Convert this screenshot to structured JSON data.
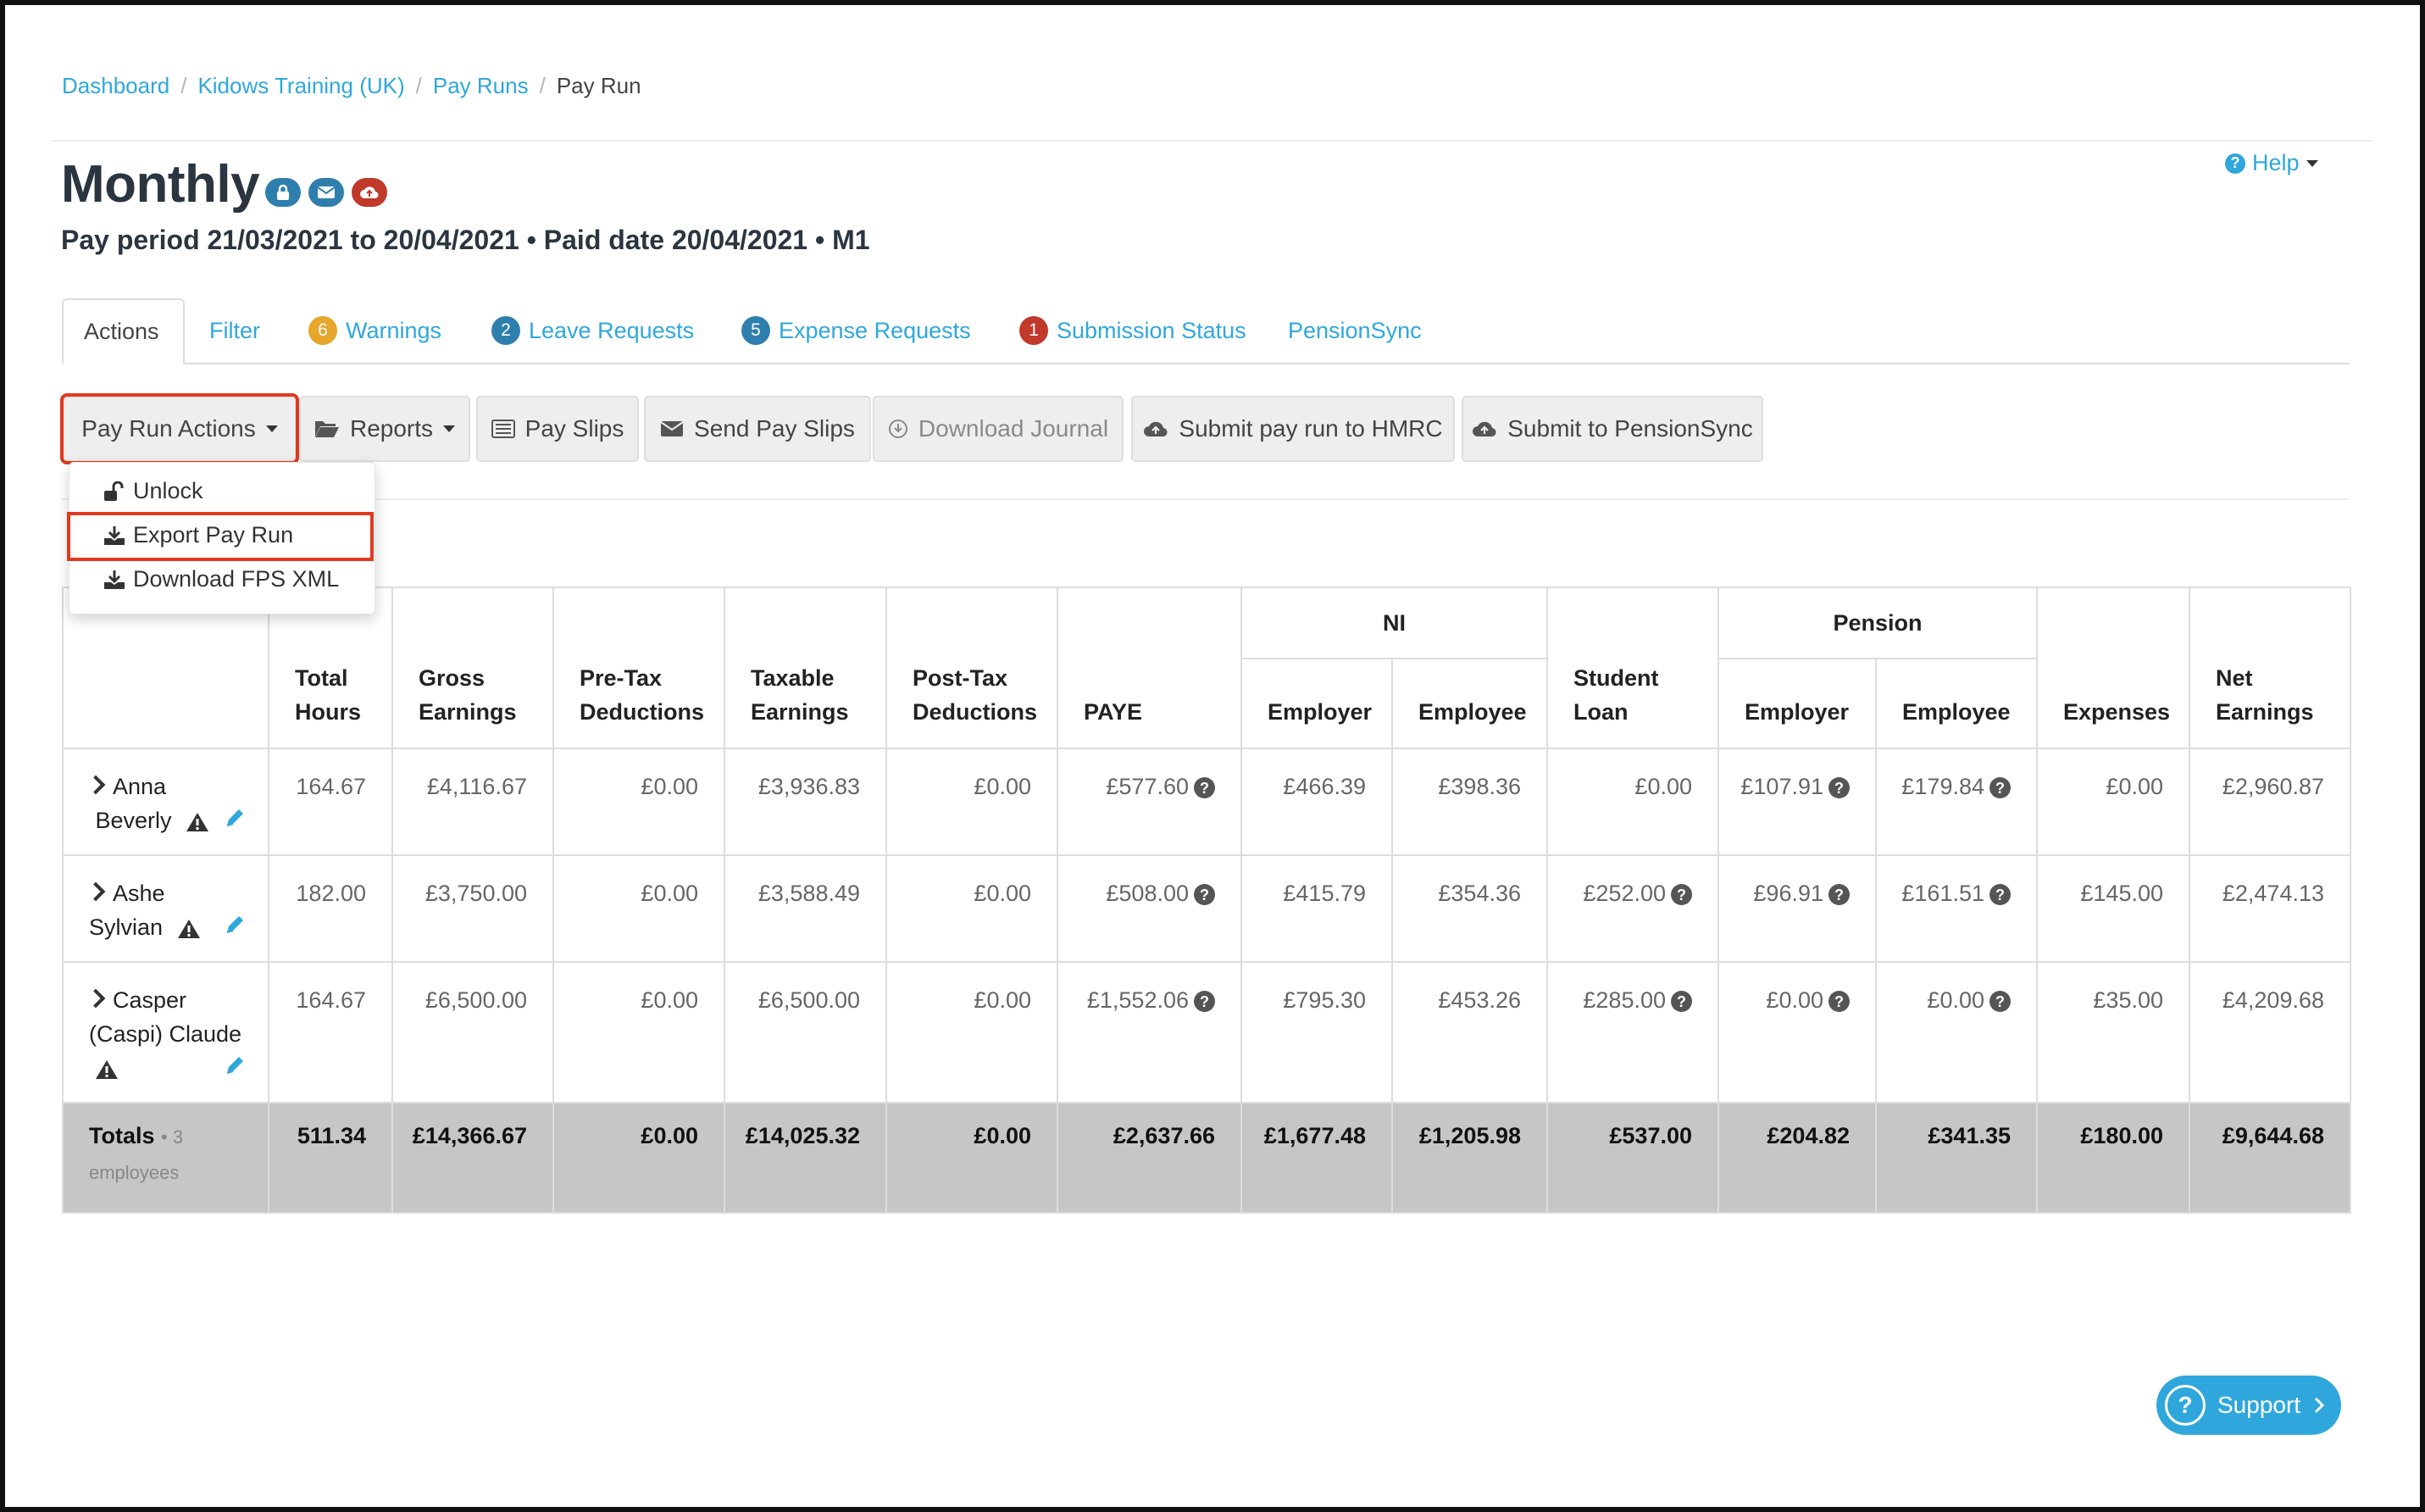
{
  "breadcrumb": [
    "Dashboard",
    "Kidows Training (UK)",
    "Pay Runs",
    "Pay Run"
  ],
  "title": "Monthly",
  "subtitle": "Pay period 21/03/2021 to 20/04/2021 • Paid date 20/04/2021 • M1",
  "help": {
    "label": "Help"
  },
  "tabs": [
    {
      "label": "Actions",
      "active": true
    },
    {
      "label": "Filter"
    },
    {
      "label": "Warnings",
      "badge": "6",
      "badge_color": "#e6a52b"
    },
    {
      "label": "Leave Requests",
      "badge": "2",
      "badge_color": "#2f7fae"
    },
    {
      "label": "Expense Requests",
      "badge": "5",
      "badge_color": "#2f7fae"
    },
    {
      "label": "Submission Status",
      "badge": "1",
      "badge_color": "#c0392b"
    },
    {
      "label": "PensionSync"
    }
  ],
  "toolbar": {
    "pay_run_actions": "Pay Run Actions",
    "reports": "Reports",
    "pay_slips": "Pay Slips",
    "send_pay_slips": "Send Pay Slips",
    "download_journal": "Download Journal",
    "submit_hmrc": "Submit pay run to HMRC",
    "submit_pensionsync": "Submit to PensionSync"
  },
  "dropdown": {
    "unlock": "Unlock",
    "export": "Export Pay Run",
    "download_fps": "Download FPS XML"
  },
  "table": {
    "headers": {
      "total_hours": [
        "Total",
        "Hours"
      ],
      "gross": [
        "Gross",
        "Earnings"
      ],
      "pretax": [
        "Pre-Tax",
        "Deductions"
      ],
      "taxable": [
        "Taxable",
        "Earnings"
      ],
      "posttax": [
        "Post-Tax",
        "Deductions"
      ],
      "paye": "PAYE",
      "ni": "NI",
      "ni_employer": "Employer",
      "ni_employee": "Employee",
      "student_loan": [
        "Student",
        "Loan"
      ],
      "pension": "Pension",
      "pension_employer": "Employer",
      "pension_employee": "Employee",
      "expenses": "Expenses",
      "net": [
        "Net",
        "Earnings"
      ]
    },
    "rows": [
      {
        "name": [
          "Anna",
          "Beverly"
        ],
        "hours": "164.67",
        "gross": "£4,116.67",
        "pretax": "£0.00",
        "taxable": "£3,936.83",
        "posttax": "£0.00",
        "paye": "£577.60",
        "ni_er": "£466.39",
        "ni_ee": "£398.36",
        "student": "£0.00",
        "pen_er": "£107.91",
        "pen_ee": "£179.84",
        "expenses": "£0.00",
        "net": "£2,960.87"
      },
      {
        "name": [
          "Ashe",
          "Sylvian"
        ],
        "hours": "182.00",
        "gross": "£3,750.00",
        "pretax": "£0.00",
        "taxable": "£3,588.49",
        "posttax": "£0.00",
        "paye": "£508.00",
        "ni_er": "£415.79",
        "ni_ee": "£354.36",
        "student": "£252.00",
        "pen_er": "£96.91",
        "pen_ee": "£161.51",
        "expenses": "£145.00",
        "net": "£2,474.13"
      },
      {
        "name": [
          "Casper",
          "(Caspi) Claude"
        ],
        "hours": "164.67",
        "gross": "£6,500.00",
        "pretax": "£0.00",
        "taxable": "£6,500.00",
        "posttax": "£0.00",
        "paye": "£1,552.06",
        "ni_er": "£795.30",
        "ni_ee": "£453.26",
        "student": "£285.00",
        "pen_er": "£0.00",
        "pen_ee": "£0.00",
        "expenses": "£35.00",
        "net": "£4,209.68"
      }
    ],
    "totals": {
      "label": "Totals",
      "count": "• 3",
      "count2": "employees",
      "hours": "511.34",
      "gross": "£14,366.67",
      "pretax": "£0.00",
      "taxable": "£14,025.32",
      "posttax": "£0.00",
      "paye": "£2,637.66",
      "ni_er": "£1,677.48",
      "ni_ee": "£1,205.98",
      "student": "£537.00",
      "pen_er": "£204.82",
      "pen_ee": "£341.35",
      "expenses": "£180.00",
      "net": "£9,644.68"
    }
  },
  "support": {
    "label": "Support"
  },
  "colors": {
    "link": "#2fa7dc",
    "highlight": "#e0391f",
    "totals_bg": "#c6c6c6"
  }
}
